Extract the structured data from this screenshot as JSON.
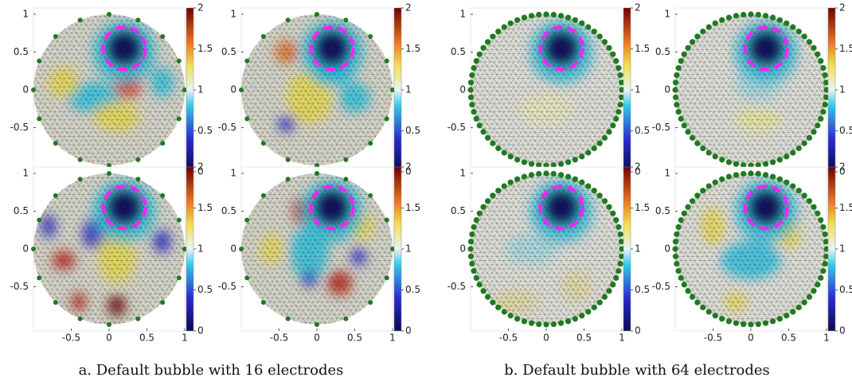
{
  "panels": [
    {
      "caption": "a. Default bubble with 16 electrodes"
    },
    {
      "caption": "b. Default bubble with 64 electrodes"
    }
  ],
  "axes": {
    "xticks": [
      -0.5,
      0,
      0.5,
      1
    ],
    "yticks": [
      1,
      0.5,
      0,
      -0.5
    ],
    "colorbar_ticks": [
      2,
      1.5,
      1,
      0.5,
      0
    ],
    "colorbar_range": [
      0,
      2
    ]
  }
}
